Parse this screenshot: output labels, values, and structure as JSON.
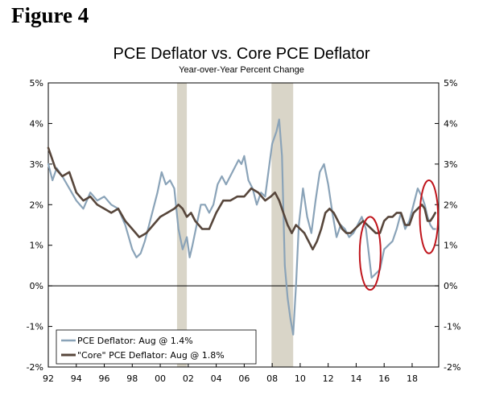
{
  "figure_label": "Figure 4",
  "chart_data": {
    "type": "line",
    "title": "PCE Deflator vs. Core PCE Deflator",
    "subtitle": "Year-over-Year Percent Change",
    "xlabel": "",
    "ylabel": "",
    "xlim": [
      1992,
      2019.9
    ],
    "ylim": [
      -2,
      5
    ],
    "x_tick_labels": [
      "92",
      "94",
      "96",
      "98",
      "00",
      "02",
      "04",
      "06",
      "08",
      "10",
      "12",
      "14",
      "16",
      "18"
    ],
    "x_tick_years": [
      1992,
      1994,
      1996,
      1998,
      2000,
      2002,
      2004,
      2006,
      2008,
      2010,
      2012,
      2014,
      2016,
      2018
    ],
    "y_tick_values": [
      5,
      4,
      3,
      2,
      1,
      0,
      -1,
      -2
    ],
    "y_tick_labels_left": [
      "5%",
      "4%",
      "3%",
      "2%",
      "1%",
      "0%",
      "-1%",
      "-2%"
    ],
    "y_tick_labels_right": [
      "5%",
      "4%",
      "3%",
      "2%",
      "1%",
      "0%",
      "-1%",
      "-2%"
    ],
    "recessions": [
      {
        "start": 2001.2,
        "end": 2001.9
      },
      {
        "start": 2007.95,
        "end": 2009.5
      }
    ],
    "highlights": [
      {
        "x_center": 2015.0,
        "y_center": 0.8,
        "x_radius": 0.75,
        "y_radius": 0.9
      },
      {
        "x_center": 2019.2,
        "y_center": 1.7,
        "x_radius": 0.65,
        "y_radius": 0.9
      }
    ],
    "legend": {
      "placement": "bottom-left",
      "entries": [
        "PCE Deflator: Aug @ 1.4%",
        "\"Core\" PCE Deflator: Aug @ 1.8%"
      ]
    },
    "series": [
      {
        "name": "PCE Deflator",
        "color": "#8aa3b8",
        "x": [
          1992.0,
          1992.3,
          1992.6,
          1993.0,
          1993.5,
          1994.0,
          1994.5,
          1995.0,
          1995.5,
          1996.0,
          1996.5,
          1997.0,
          1997.5,
          1998.0,
          1998.3,
          1998.6,
          1998.9,
          1999.2,
          1999.5,
          1999.8,
          2000.1,
          2000.4,
          2000.7,
          2001.0,
          2001.3,
          2001.6,
          2001.9,
          2002.1,
          2002.3,
          2002.6,
          2002.9,
          2003.2,
          2003.5,
          2003.8,
          2004.1,
          2004.4,
          2004.7,
          2005.0,
          2005.3,
          2005.6,
          2005.8,
          2006.0,
          2006.3,
          2006.6,
          2006.9,
          2007.2,
          2007.5,
          2007.8,
          2008.0,
          2008.3,
          2008.5,
          2008.7,
          2008.9,
          2009.1,
          2009.3,
          2009.5,
          2009.7,
          2009.9,
          2010.2,
          2010.5,
          2010.8,
          2011.1,
          2011.4,
          2011.7,
          2012.0,
          2012.3,
          2012.6,
          2012.9,
          2013.2,
          2013.5,
          2013.8,
          2014.1,
          2014.4,
          2014.7,
          2014.9,
          2015.1,
          2015.4,
          2015.7,
          2016.0,
          2016.3,
          2016.6,
          2016.9,
          2017.2,
          2017.5,
          2017.8,
          2018.1,
          2018.4,
          2018.7,
          2018.9,
          2019.1,
          2019.3,
          2019.5,
          2019.65
        ],
        "values": [
          3.0,
          2.6,
          2.9,
          2.7,
          2.4,
          2.1,
          1.9,
          2.3,
          2.1,
          2.2,
          2.0,
          1.9,
          1.5,
          0.9,
          0.7,
          0.8,
          1.1,
          1.5,
          1.9,
          2.3,
          2.8,
          2.5,
          2.6,
          2.4,
          1.4,
          0.9,
          1.2,
          0.7,
          1.0,
          1.5,
          2.0,
          2.0,
          1.8,
          2.0,
          2.5,
          2.7,
          2.5,
          2.7,
          2.9,
          3.1,
          3.0,
          3.2,
          2.6,
          2.4,
          2.0,
          2.3,
          2.2,
          3.0,
          3.5,
          3.8,
          4.1,
          3.2,
          0.5,
          -0.3,
          -0.8,
          -1.2,
          0.0,
          1.5,
          2.4,
          1.7,
          1.3,
          2.1,
          2.8,
          3.0,
          2.5,
          1.8,
          1.2,
          1.5,
          1.4,
          1.2,
          1.3,
          1.5,
          1.7,
          1.4,
          0.8,
          0.2,
          0.3,
          0.4,
          0.9,
          1.0,
          1.1,
          1.4,
          1.8,
          1.4,
          1.6,
          2.0,
          2.4,
          2.2,
          2.0,
          1.7,
          1.5,
          1.4,
          1.4
        ]
      },
      {
        "name": "\"Core\" PCE Deflator",
        "color": "#57463b",
        "x": [
          1992.0,
          1992.2,
          1992.5,
          1993.0,
          1993.5,
          1994.0,
          1994.5,
          1995.0,
          1995.5,
          1996.0,
          1996.5,
          1997.0,
          1997.5,
          1998.0,
          1998.5,
          1999.0,
          1999.5,
          2000.0,
          2000.5,
          2001.0,
          2001.3,
          2001.6,
          2001.9,
          2002.2,
          2002.5,
          2003.0,
          2003.5,
          2004.0,
          2004.5,
          2005.0,
          2005.5,
          2006.0,
          2006.5,
          2007.0,
          2007.5,
          2007.9,
          2008.2,
          2008.5,
          2008.8,
          2009.1,
          2009.4,
          2009.7,
          2010.0,
          2010.3,
          2010.6,
          2010.9,
          2011.2,
          2011.5,
          2011.8,
          2012.1,
          2012.4,
          2012.7,
          2013.0,
          2013.3,
          2013.6,
          2013.9,
          2014.2,
          2014.5,
          2014.8,
          2015.1,
          2015.4,
          2015.7,
          2016.0,
          2016.3,
          2016.6,
          2016.9,
          2017.2,
          2017.5,
          2017.8,
          2018.1,
          2018.4,
          2018.7,
          2018.9,
          2019.1,
          2019.3,
          2019.5,
          2019.65
        ],
        "values": [
          3.4,
          3.2,
          2.9,
          2.7,
          2.8,
          2.3,
          2.1,
          2.2,
          2.0,
          1.9,
          1.8,
          1.9,
          1.6,
          1.4,
          1.2,
          1.3,
          1.5,
          1.7,
          1.8,
          1.9,
          2.0,
          1.9,
          1.7,
          1.8,
          1.6,
          1.4,
          1.4,
          1.8,
          2.1,
          2.1,
          2.2,
          2.2,
          2.4,
          2.3,
          2.1,
          2.2,
          2.3,
          2.1,
          1.8,
          1.5,
          1.3,
          1.5,
          1.4,
          1.3,
          1.1,
          0.9,
          1.1,
          1.4,
          1.8,
          1.9,
          1.8,
          1.6,
          1.4,
          1.3,
          1.3,
          1.4,
          1.5,
          1.6,
          1.5,
          1.4,
          1.3,
          1.3,
          1.6,
          1.7,
          1.7,
          1.8,
          1.8,
          1.5,
          1.5,
          1.8,
          1.9,
          2.0,
          1.9,
          1.6,
          1.6,
          1.7,
          1.8
        ]
      }
    ]
  },
  "colors": {
    "recession_band": "#d9d5c8",
    "highlight_ellipse": "#c0161d",
    "axis": "#000000"
  }
}
